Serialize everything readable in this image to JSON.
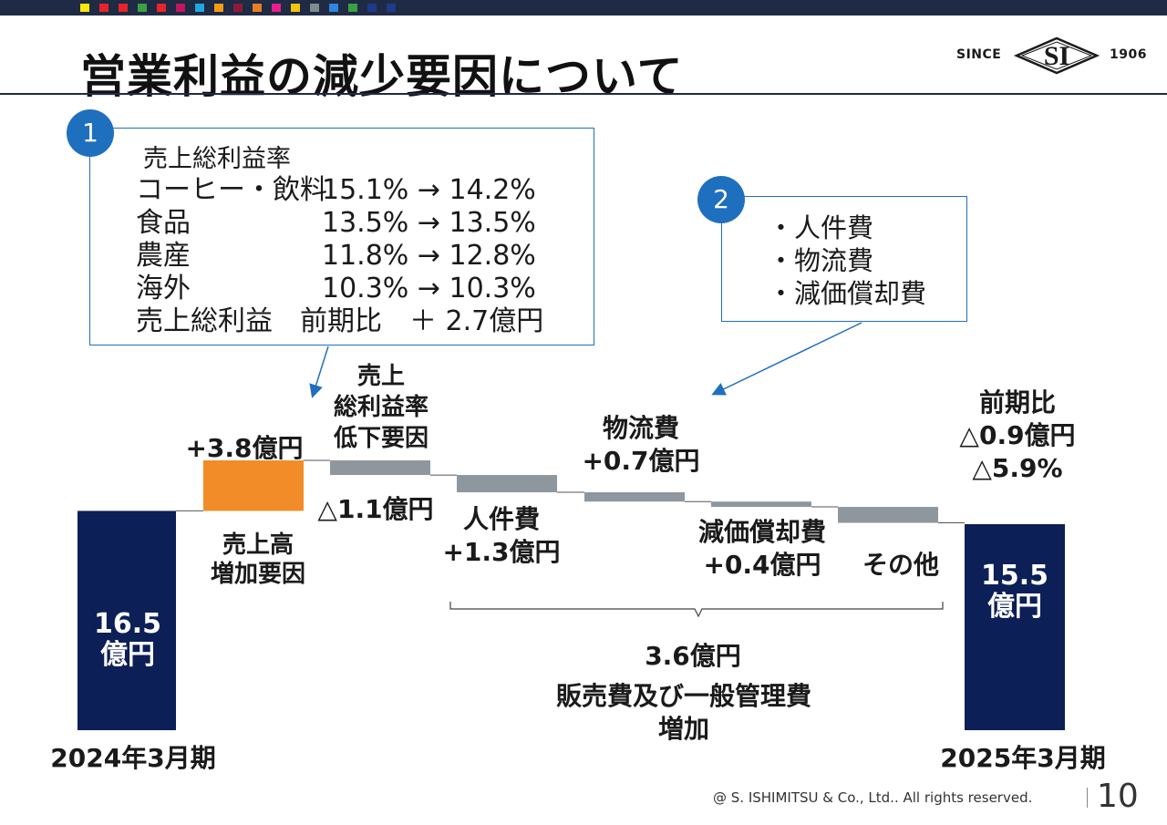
{
  "title": "営業利益の減少要因について",
  "logo": {
    "since": "SINCE",
    "mark": "SI",
    "year": "1906"
  },
  "swatch_colors": [
    "#f6e80a",
    "#e8242a",
    "#e8242a",
    "#3aa142",
    "#e8242a",
    "#c2185b",
    "#1fa7e0",
    "#f39c12",
    "#8e1b3a",
    "#e67e22",
    "#e91e8c",
    "#f1c40f",
    "#7f8c8d",
    "#2e86de",
    "#3aa142",
    "#1e3a8a",
    "#1e3a8a"
  ],
  "box1": {
    "number": "1",
    "heading": "売上総利益率",
    "rows": [
      {
        "label": "コーヒー・飲料",
        "value": "15.1% → 14.2%"
      },
      {
        "label": "食品",
        "value": "13.5% → 13.5%"
      },
      {
        "label": "農産",
        "value": "11.8% → 12.8%"
      },
      {
        "label": "海外",
        "value": "10.3% → 10.3%"
      }
    ],
    "summary": "売上総利益　前期比　＋ 2.7億円"
  },
  "box2": {
    "number": "2",
    "items": [
      "・人件費",
      "・物流費",
      "・減価償却費"
    ]
  },
  "chart_data": {
    "type": "bar",
    "subtype": "waterfall",
    "unit": "億円",
    "colors": {
      "total": "#0c1f56",
      "increase": "#f28c28",
      "decrease": "#8f979e",
      "connector": "#555555"
    },
    "steps": [
      {
        "id": "start",
        "kind": "total",
        "value": 16.5
      },
      {
        "id": "sales",
        "kind": "increase",
        "value": 3.8
      },
      {
        "id": "margin",
        "kind": "decrease",
        "value": 1.1
      },
      {
        "id": "personnel",
        "kind": "decrease",
        "value": 1.3
      },
      {
        "id": "logistics",
        "kind": "decrease",
        "value": 0.7
      },
      {
        "id": "depreciation",
        "kind": "decrease",
        "value": 0.4
      },
      {
        "id": "other",
        "kind": "decrease",
        "value": 1.2
      },
      {
        "id": "end",
        "kind": "total",
        "value": 15.5
      }
    ],
    "bar_labels": {
      "start": [
        "16.5",
        "億円"
      ],
      "end": [
        "15.5",
        "億円"
      ]
    },
    "value_labels": {
      "sales": "+3.8億円",
      "margin": "△1.1億円",
      "personnel": "+1.3億円",
      "logistics": "+0.7億円",
      "depreciation": "+0.4億円"
    },
    "category_labels": {
      "sales": [
        "売上高",
        "増加要因"
      ],
      "margin": [
        "売上",
        "総利益率",
        "低下要因"
      ],
      "personnel": [
        "人件費"
      ],
      "logistics": [
        "物流費"
      ],
      "depreciation": [
        "減価償却費"
      ],
      "other": [
        "その他"
      ]
    },
    "period_labels": {
      "start": "2024年3月期",
      "end": "2025年3月期"
    },
    "yoy": [
      "前期比",
      "△0.9億円",
      "△5.9%"
    ],
    "bracket": {
      "value": "3.6億円",
      "caption": [
        "販売費及び一般管理費",
        "増加"
      ]
    }
  },
  "footer": {
    "copyright": "@ S. ISHIMITSU & Co., Ltd.. All rights reserved.",
    "page": "10"
  }
}
